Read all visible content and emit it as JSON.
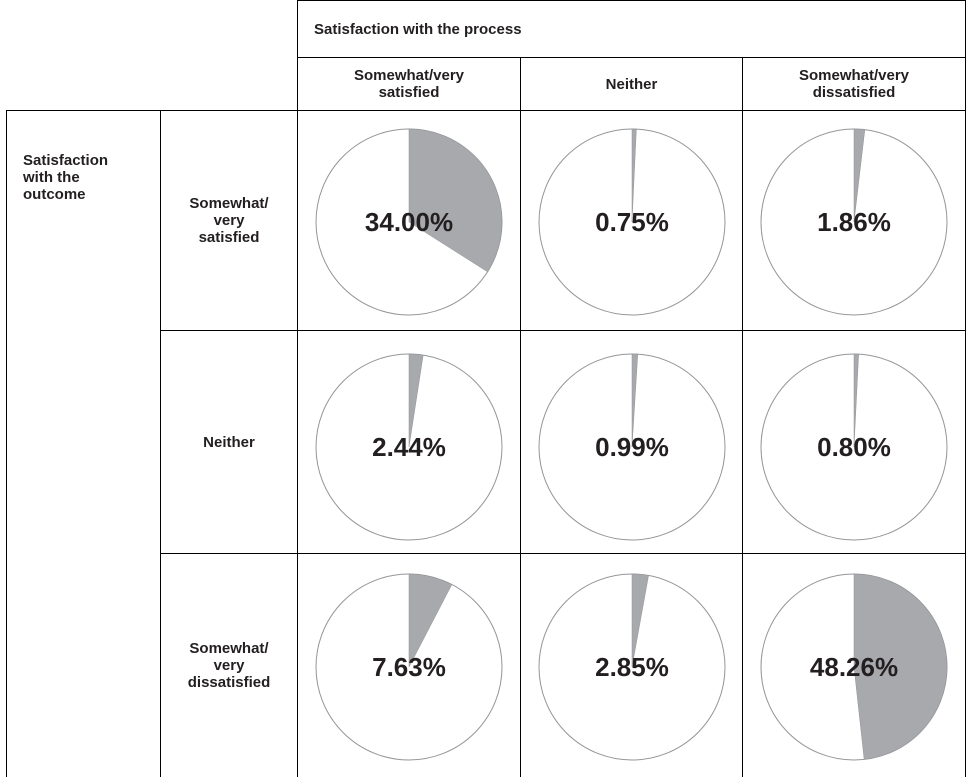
{
  "chart_data": {
    "type": "pie",
    "column_header": "Satisfaction with the process",
    "columns": [
      "Somewhat/very\nsatisfied",
      "Neither",
      "Somewhat/very\ndissatisfied"
    ],
    "row_header": "Satisfaction\nwith the\noutcome",
    "rows": [
      "Somewhat/\nvery\nsatisfied",
      "Neither",
      "Somewhat/\nvery\ndissatisfied"
    ],
    "cells": [
      {
        "row": 0,
        "col": 0,
        "value": 34.0,
        "label": "34.00%"
      },
      {
        "row": 0,
        "col": 1,
        "value": 0.75,
        "label": "0.75%"
      },
      {
        "row": 0,
        "col": 2,
        "value": 1.86,
        "label": "1.86%"
      },
      {
        "row": 1,
        "col": 0,
        "value": 2.44,
        "label": "2.44%"
      },
      {
        "row": 1,
        "col": 1,
        "value": 0.99,
        "label": "0.99%"
      },
      {
        "row": 1,
        "col": 2,
        "value": 0.8,
        "label": "0.80%"
      },
      {
        "row": 2,
        "col": 0,
        "value": 7.63,
        "label": "7.63%"
      },
      {
        "row": 2,
        "col": 1,
        "value": 2.85,
        "label": "2.85%"
      },
      {
        "row": 2,
        "col": 2,
        "value": 48.26,
        "label": "48.26%"
      }
    ],
    "colors": {
      "slice": "#a7a9ac",
      "background": "#ffffff",
      "outline": "#939598",
      "text": "#231f20"
    }
  }
}
